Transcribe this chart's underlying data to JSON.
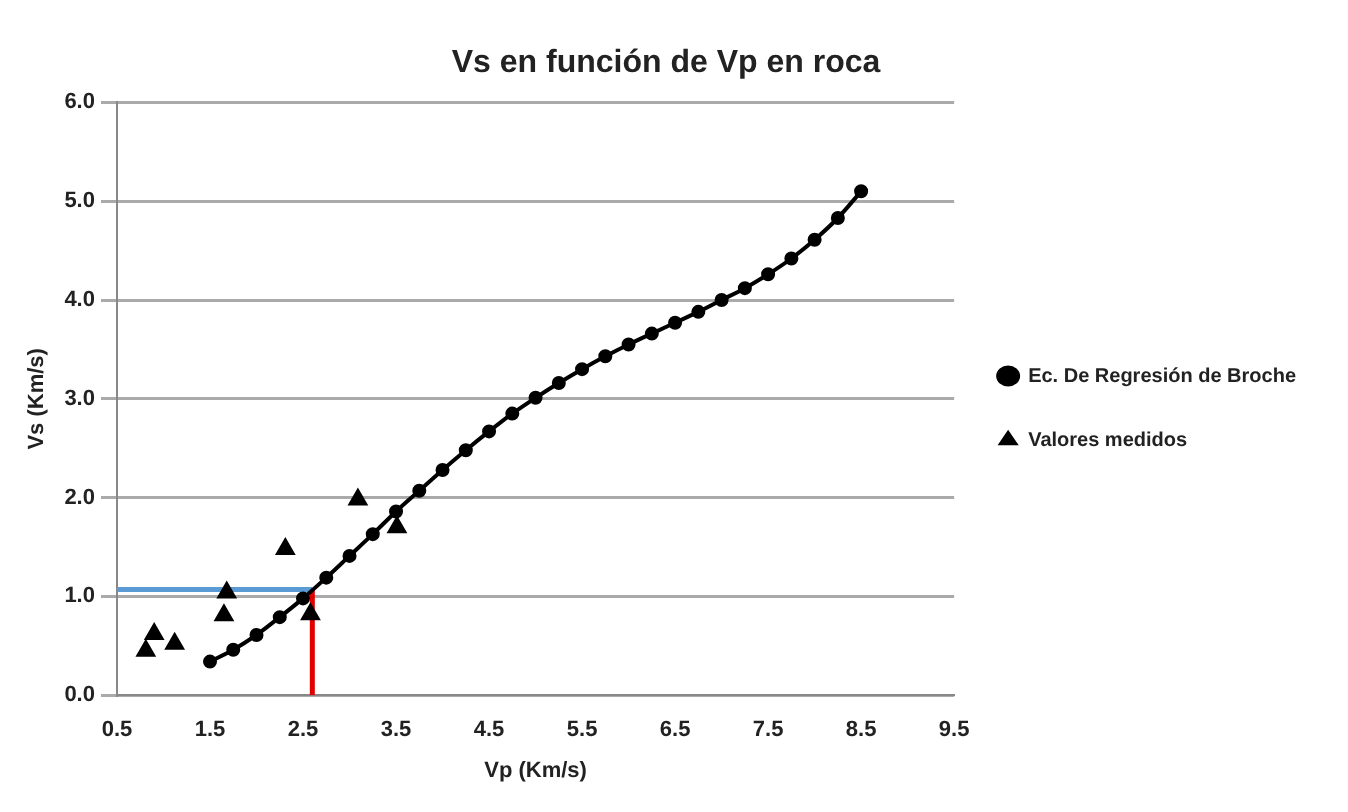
{
  "chart_data": {
    "type": "line",
    "title": "Vs en función de Vp en roca",
    "xlabel": "Vp (Km/s)",
    "ylabel": "Vs (Km/s)",
    "xlim": [
      0.5,
      9.5
    ],
    "xticks": [
      0.5,
      1.5,
      2.5,
      3.5,
      4.5,
      5.5,
      6.5,
      7.5,
      8.5,
      9.5
    ],
    "ylim": [
      0,
      6
    ],
    "yticks": [
      {
        "value": 0,
        "label": "0.0"
      },
      {
        "value": 1,
        "label": "1.0"
      },
      {
        "value": 2,
        "label": "2.0"
      },
      {
        "value": 3,
        "label": "3.0"
      },
      {
        "value": 4,
        "label": "4.0"
      },
      {
        "value": 5,
        "label": "5.0"
      },
      {
        "value": 6,
        "label": "6.0"
      }
    ],
    "grid": "y",
    "legend": "right",
    "series": [
      {
        "name": "Ec. De Regresión de Broche",
        "type": "line",
        "color": "#000000",
        "marker": "circle",
        "x": [
          1.5,
          1.75,
          2.0,
          2.25,
          2.5,
          2.75,
          3.0,
          3.25,
          3.5,
          3.75,
          4.0,
          4.25,
          4.5,
          4.75,
          5.0,
          5.25,
          5.5,
          5.75,
          6.0,
          6.25,
          6.5,
          6.75,
          7.0,
          7.25,
          7.5,
          7.75,
          8.0,
          8.25,
          8.5
        ],
        "values": [
          0.34,
          0.46,
          0.61,
          0.79,
          0.98,
          1.19,
          1.41,
          1.63,
          1.86,
          2.07,
          2.28,
          2.48,
          2.67,
          2.85,
          3.01,
          3.16,
          3.3,
          3.43,
          3.55,
          3.66,
          3.77,
          3.88,
          4.0,
          4.12,
          4.26,
          4.42,
          4.61,
          4.83,
          5.1
        ]
      },
      {
        "name": "Valores medidos",
        "type": "scatter",
        "color": "#000000",
        "marker": "triangle",
        "x": [
          0.81,
          0.9,
          1.12,
          1.65,
          1.68,
          2.31,
          2.58,
          3.09,
          3.51
        ],
        "values": [
          0.45,
          0.62,
          0.52,
          0.81,
          1.04,
          1.48,
          0.82,
          1.98,
          1.7
        ]
      },
      {
        "type": "line",
        "color": "#5b9bd5",
        "marker": "none",
        "x": [
          0.5,
          2.6
        ],
        "values": [
          1.07,
          1.07
        ]
      },
      {
        "type": "line",
        "color": "#e00000",
        "marker": "none",
        "x": [
          2.6,
          2.6
        ],
        "values": [
          0,
          1.07
        ]
      }
    ]
  }
}
